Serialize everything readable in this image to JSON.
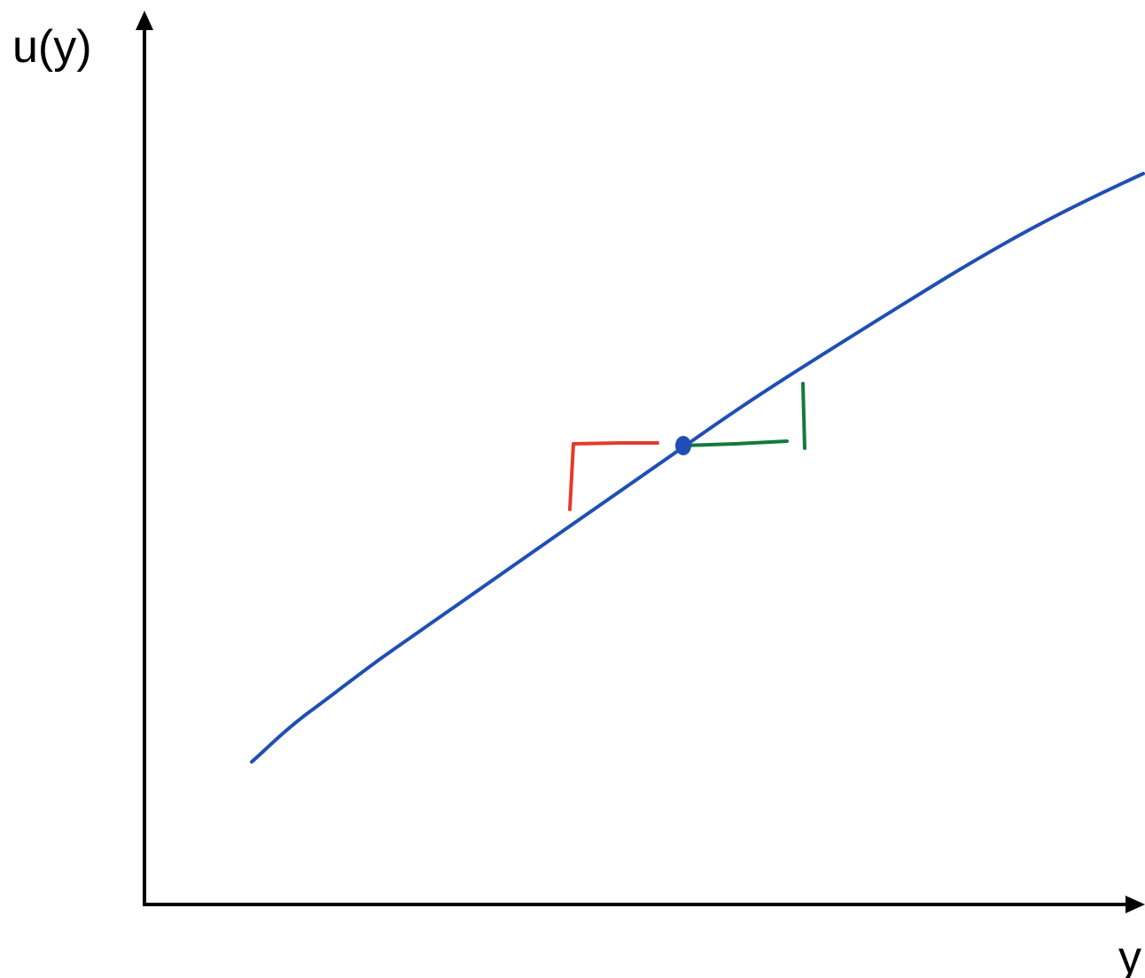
{
  "axes": {
    "y_label": "u(y)",
    "x_label": "y"
  },
  "colors": {
    "axis": "#000000",
    "curve": "#1f4fb5",
    "point": "#1f4fb5",
    "left_step": "#e53a2b",
    "right_step": "#127a3a"
  }
}
